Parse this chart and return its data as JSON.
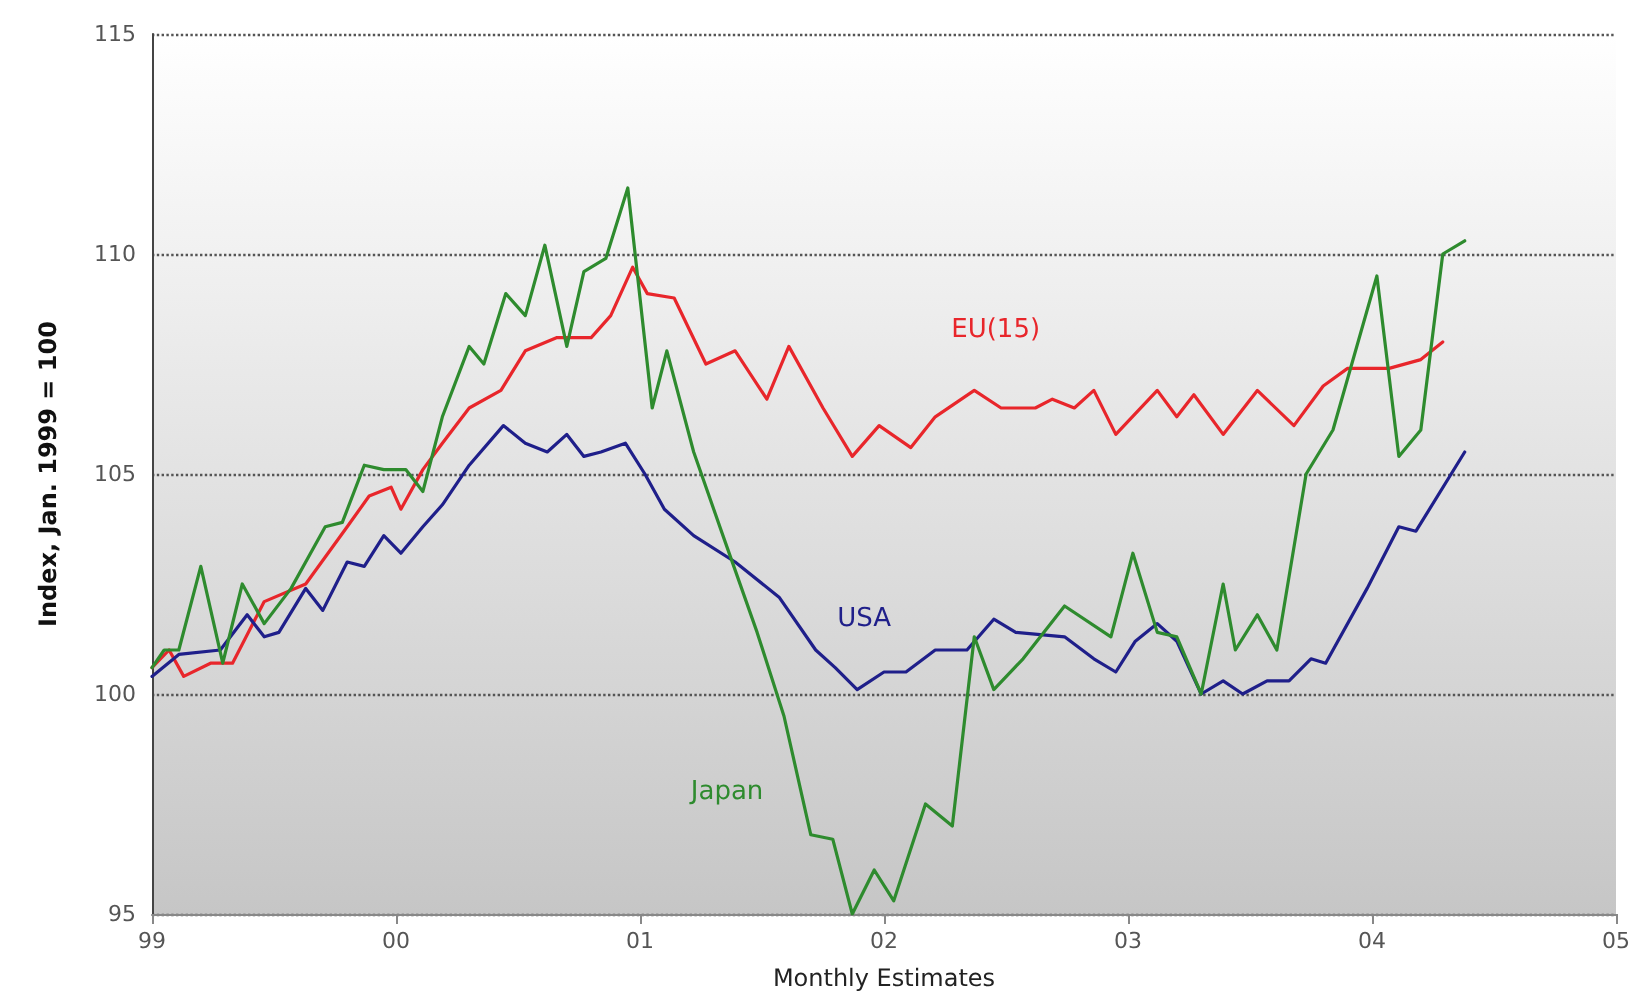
{
  "chart_data": {
    "type": "line",
    "xlabel": "Monthly Estimates",
    "ylabel": "Index, Jan. 1999 = 100",
    "xlim": [
      1999,
      2005
    ],
    "xticks": [
      {
        "value": 1999,
        "label": "99"
      },
      {
        "value": 2000,
        "label": "00"
      },
      {
        "value": 2001,
        "label": "01"
      },
      {
        "value": 2002,
        "label": "02"
      },
      {
        "value": 2003,
        "label": "03"
      },
      {
        "value": 2004,
        "label": "04"
      },
      {
        "value": 2005,
        "label": "05"
      }
    ],
    "ylim": [
      95,
      115
    ],
    "yticks": [
      95,
      100,
      105,
      110,
      115
    ],
    "grid": "y",
    "legend": false,
    "marker": "none",
    "line_style": "solid",
    "series": [
      {
        "name": "EU(15)",
        "color": "#e8262b",
        "x": [
          1999.0,
          1999.07,
          1999.13,
          1999.24,
          1999.33,
          1999.46,
          1999.63,
          1999.8,
          1999.89,
          1999.98,
          2000.02,
          2000.11,
          2000.19,
          2000.3,
          2000.43,
          2000.53,
          2000.66,
          2000.8,
          2000.88,
          2000.97,
          2001.03,
          2001.14,
          2001.27,
          2001.39,
          2001.52,
          2001.61,
          2001.75,
          2001.87,
          2001.98,
          2002.11,
          2002.21,
          2002.37,
          2002.48,
          2002.62,
          2002.69,
          2002.78,
          2002.86,
          2002.95,
          2003.12,
          2003.2,
          2003.27,
          2003.39,
          2003.53,
          2003.68,
          2003.8,
          2003.9,
          2004.07,
          2004.2,
          2004.29
        ],
        "values": [
          100.6,
          101.0,
          100.4,
          100.7,
          100.7,
          102.1,
          102.5,
          103.8,
          104.5,
          104.7,
          104.2,
          105.1,
          105.7,
          106.5,
          106.9,
          107.8,
          108.1,
          108.1,
          108.6,
          109.7,
          109.1,
          109.0,
          107.5,
          107.8,
          106.7,
          107.9,
          106.5,
          105.4,
          106.1,
          105.6,
          106.3,
          106.9,
          106.5,
          106.5,
          106.7,
          106.5,
          106.9,
          105.9,
          106.9,
          106.3,
          106.8,
          105.9,
          106.9,
          106.1,
          107.0,
          107.4,
          107.4,
          107.6,
          108.0
        ]
      },
      {
        "name": "USA",
        "color": "#1f1f8a",
        "x": [
          1999.0,
          1999.11,
          1999.28,
          1999.39,
          1999.46,
          1999.52,
          1999.63,
          1999.7,
          1999.8,
          1999.87,
          1999.95,
          2000.02,
          2000.11,
          2000.19,
          2000.3,
          2000.44,
          2000.53,
          2000.62,
          2000.7,
          2000.77,
          2000.84,
          2000.94,
          2001.02,
          2001.1,
          2001.22,
          2001.39,
          2001.57,
          2001.72,
          2001.8,
          2001.89,
          2002.0,
          2002.09,
          2002.21,
          2002.34,
          2002.45,
          2002.54,
          2002.74,
          2002.86,
          2002.95,
          2003.03,
          2003.12,
          2003.2,
          2003.3,
          2003.39,
          2003.47,
          2003.57,
          2003.66,
          2003.75,
          2003.81,
          2003.98,
          2004.11,
          2004.18,
          2004.38
        ],
        "values": [
          100.4,
          100.9,
          101.0,
          101.8,
          101.3,
          101.4,
          102.4,
          101.9,
          103.0,
          102.9,
          103.6,
          103.2,
          103.8,
          104.3,
          105.2,
          106.1,
          105.7,
          105.5,
          105.9,
          105.4,
          105.5,
          105.7,
          105.0,
          104.2,
          103.6,
          103.0,
          102.2,
          101.0,
          100.6,
          100.1,
          100.5,
          100.5,
          101.0,
          101.0,
          101.7,
          101.4,
          101.3,
          100.8,
          100.5,
          101.2,
          101.6,
          101.2,
          100.0,
          100.3,
          100.0,
          100.3,
          100.3,
          100.8,
          100.7,
          102.4,
          103.8,
          103.7,
          105.5
        ]
      },
      {
        "name": "Japan",
        "color": "#2e8b2e",
        "x": [
          1999.0,
          1999.05,
          1999.11,
          1999.2,
          1999.29,
          1999.37,
          1999.46,
          1999.57,
          1999.71,
          1999.78,
          1999.87,
          1999.95,
          2000.04,
          2000.11,
          2000.19,
          2000.3,
          2000.36,
          2000.45,
          2000.53,
          2000.61,
          2000.7,
          2000.77,
          2000.86,
          2000.95,
          2000.98,
          2001.05,
          2001.11,
          2001.22,
          2001.34,
          2001.48,
          2001.59,
          2001.7,
          2001.79,
          2001.87,
          2001.96,
          2002.04,
          2002.17,
          2002.28,
          2002.37,
          2002.45,
          2002.57,
          2002.74,
          2002.93,
          2003.02,
          2003.12,
          2003.2,
          2003.3,
          2003.39,
          2003.44,
          2003.53,
          2003.61,
          2003.73,
          2003.84,
          2004.02,
          2004.11,
          2004.2,
          2004.29,
          2004.38
        ],
        "values": [
          100.6,
          101.0,
          101.0,
          102.9,
          100.7,
          102.5,
          101.6,
          102.4,
          103.8,
          103.9,
          105.2,
          105.1,
          105.1,
          104.6,
          106.3,
          107.9,
          107.5,
          109.1,
          108.6,
          110.2,
          107.9,
          109.6,
          109.9,
          111.5,
          110.0,
          106.5,
          107.8,
          105.5,
          103.6,
          101.4,
          99.5,
          96.8,
          96.7,
          95.0,
          96.0,
          95.3,
          97.5,
          97.0,
          101.3,
          100.1,
          100.8,
          102.0,
          101.3,
          103.2,
          101.4,
          101.3,
          100.0,
          102.5,
          101.0,
          101.8,
          101.0,
          105.0,
          106.0,
          109.5,
          105.4,
          106.0,
          110.0,
          110.3
        ]
      }
    ]
  }
}
